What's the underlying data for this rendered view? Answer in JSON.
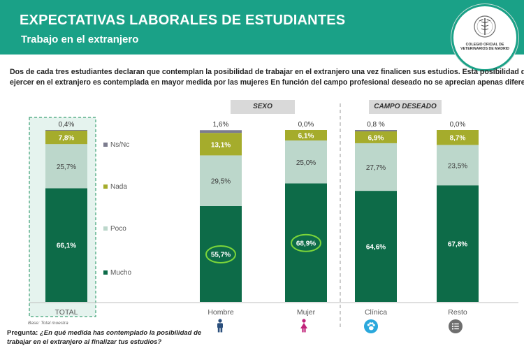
{
  "header": {
    "title": "EXPECTATIVAS LABORALES DE ESTUDIANTES",
    "subtitle": "Trabajo en el extranjero",
    "logo_text": "COLEGIO OFICIAL DE VETERINARIOS DE MADRID"
  },
  "intro": {
    "line1": "Dos de cada tres estudiantes declaran que contemplan la posibilidad de trabajar en el extranjero una vez finalicen sus estudios. Esta posibilidad de",
    "line2": "ejercer en el extranjero es contemplada en mayor medida por las mujeres  En función del campo profesional deseado  no se aprecian apenas diferencias."
  },
  "sections": {
    "sexo": "SEXO",
    "campo": "CAMPO DESEADO"
  },
  "base_note": "Base: Total muestra",
  "footer": {
    "label": "Pregunta: ",
    "question_line1": "¿En qué medida has contemplado la posibilidad de",
    "question_line2": "trabajar en el extranjero al finalizar tus estudios?"
  },
  "colors": {
    "header": "#1aa187",
    "mucho": "#0d6b48",
    "poco": "#bcd7cb",
    "nada": "#a5ac2c",
    "nsnc": "#7c7c8e",
    "highlight_ring": "#7cd63a",
    "icon_hombre": "#2b4f7c",
    "icon_mujer": "#c0237a",
    "icon_clinica": "#2aa8dc",
    "icon_resto": "#6e6e6e"
  },
  "chart_data": {
    "type": "bar",
    "stacked": true,
    "unit": "%",
    "categories": [
      "TOTAL",
      "Hombre",
      "Mujer",
      "Clínica",
      "Resto"
    ],
    "groups": [
      {
        "label": "",
        "categories": [
          "TOTAL"
        ]
      },
      {
        "label": "SEXO",
        "categories": [
          "Hombre",
          "Mujer"
        ]
      },
      {
        "label": "CAMPO DESEADO",
        "categories": [
          "Clínica",
          "Resto"
        ]
      }
    ],
    "series": [
      {
        "name": "Mucho",
        "values": [
          66.1,
          55.7,
          68.9,
          64.6,
          67.8
        ],
        "labels": [
          "66,1%",
          "55,7%",
          "68,9%",
          "64,6%",
          "67,8%"
        ]
      },
      {
        "name": "Poco",
        "values": [
          25.7,
          29.5,
          25.0,
          27.7,
          23.5
        ],
        "labels": [
          "25,7%",
          "29,5%",
          "25,0%",
          "27,7%",
          "23,5%"
        ]
      },
      {
        "name": "Nada",
        "values": [
          7.8,
          13.1,
          6.1,
          6.9,
          8.7
        ],
        "labels": [
          "7,8%",
          "13,1%",
          "6,1%",
          "6,9%",
          "8,7%"
        ]
      },
      {
        "name": "Ns/Nc",
        "values": [
          0.4,
          1.6,
          0.0,
          0.8,
          0.0
        ],
        "labels": [
          "0,4%",
          "1,6%",
          "0,0%",
          "0,8 %",
          "0,0%"
        ]
      }
    ],
    "legend": [
      "Ns/Nc",
      "Nada",
      "Poco",
      "Mucho"
    ],
    "legend_position": "left-inside",
    "highlighted": [
      {
        "category": "Hombre",
        "series": "Mucho"
      },
      {
        "category": "Mujer",
        "series": "Mucho"
      }
    ],
    "highlighted_category_box": "TOTAL",
    "ylim": [
      0,
      100
    ],
    "grid": false
  }
}
